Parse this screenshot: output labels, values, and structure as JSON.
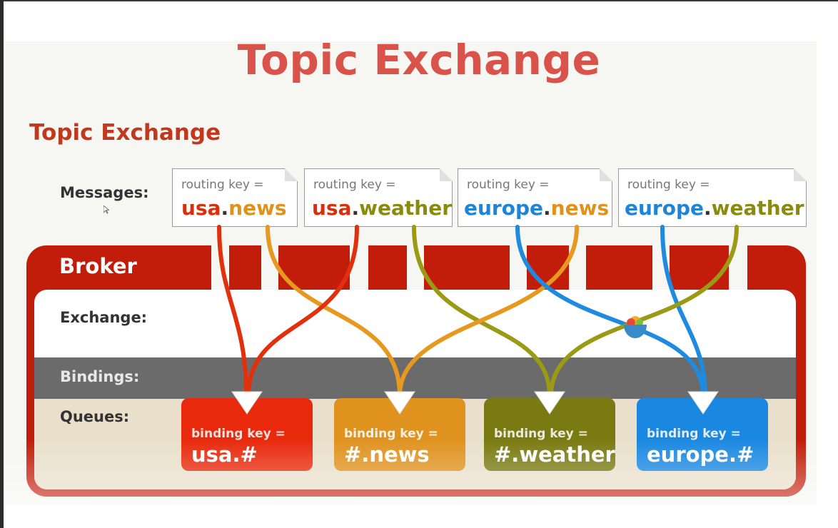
{
  "slide_title": "Topic Exchange",
  "diagram_title": "Topic Exchange",
  "labels": {
    "messages": "Messages:",
    "broker": "Broker",
    "exchange": "Exchange:",
    "bindings": "Bindings:",
    "queues": "Queues:"
  },
  "messages": [
    {
      "routing_label": "routing key =",
      "prefix": "usa",
      "dot": ".",
      "suffix": "news"
    },
    {
      "routing_label": "routing key =",
      "prefix": "usa",
      "dot": ".",
      "suffix": "weather"
    },
    {
      "routing_label": "routing key =",
      "prefix": "europe",
      "dot": ".",
      "suffix": "news"
    },
    {
      "routing_label": "routing key =",
      "prefix": "europe",
      "dot": ".",
      "suffix": "weather"
    }
  ],
  "queues": [
    {
      "binding_label": "binding key =",
      "value": "usa.#",
      "color": "#e8290c"
    },
    {
      "binding_label": "binding key =",
      "value": "#.news",
      "color": "#e0921f"
    },
    {
      "binding_label": "binding key =",
      "value": "#.weather",
      "color": "#7a7a12"
    },
    {
      "binding_label": "binding key =",
      "value": "europe.#",
      "color": "#1a88e0"
    }
  ],
  "colors": {
    "title": "#d9534a",
    "broker": "#c21d0a",
    "usa": "#d8300c",
    "europe": "#1e84d8",
    "news": "#e0921f",
    "weather": "#8a8a10"
  },
  "icons": {
    "overlay": "emoji-bowl-icon",
    "pointer": "mouse-cursor-icon"
  }
}
